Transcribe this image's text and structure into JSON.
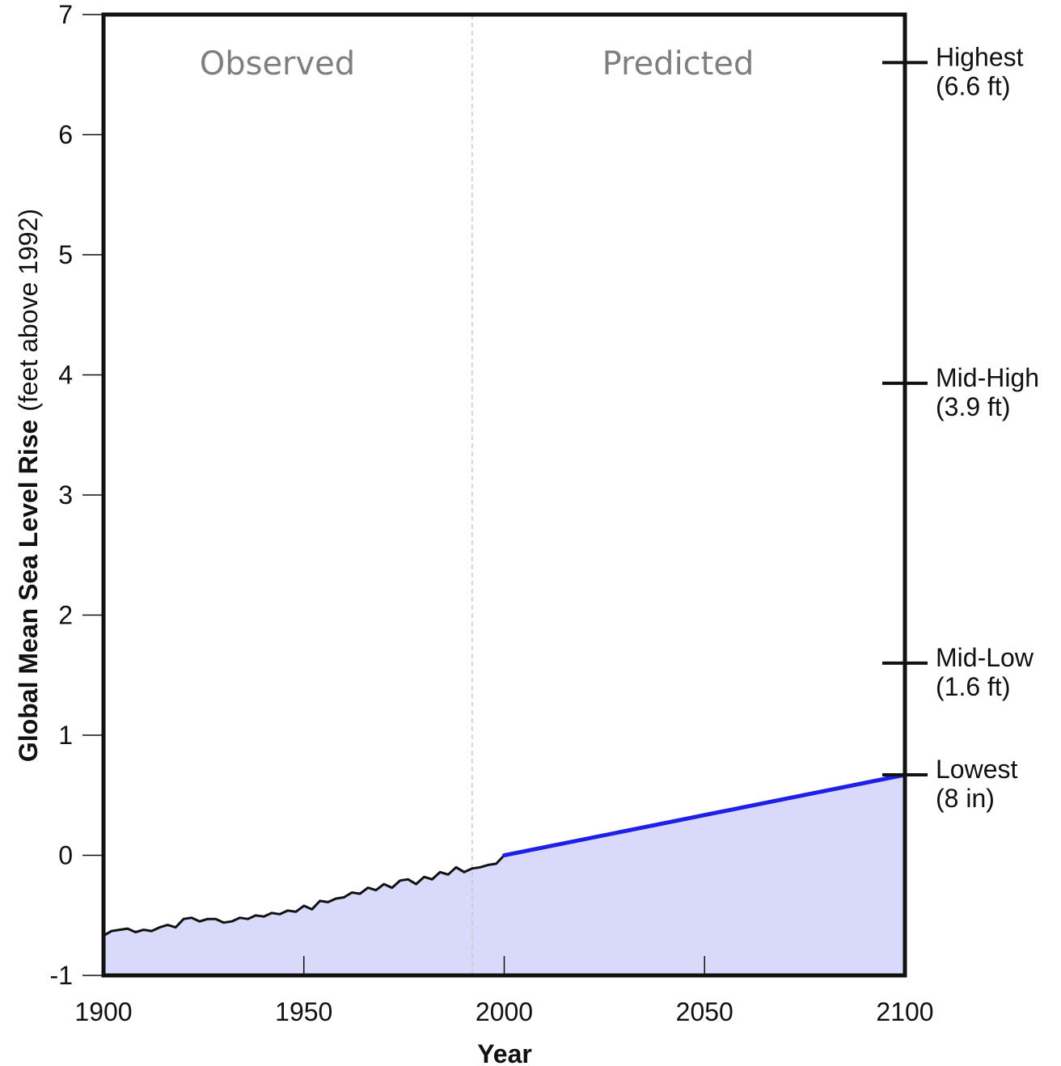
{
  "chart_data": {
    "type": "area",
    "xlabel": "Year",
    "ylabel_bold": "Global Mean Sea Level Rise",
    "ylabel_units": "(feet above 1992)",
    "xlim": [
      1900,
      2100
    ],
    "ylim": [
      -1,
      7
    ],
    "x_ticks": [
      "1900",
      "1950",
      "2000",
      "2050",
      "2100"
    ],
    "x_tick_values": [
      1900,
      1950,
      2000,
      2050,
      2100
    ],
    "y_ticks": [
      "-1",
      "0",
      "1",
      "2",
      "3",
      "4",
      "5",
      "6",
      "7"
    ],
    "y_tick_values": [
      -1,
      0,
      1,
      2,
      3,
      4,
      5,
      6,
      7
    ],
    "grid": false,
    "divider_year": 1992,
    "regions": [
      {
        "label": "Observed",
        "center_year": 1945
      },
      {
        "label": "Predicted",
        "center_year": 2045
      }
    ],
    "observed": {
      "color": "#111111",
      "x": [
        1900,
        1902,
        1904,
        1906,
        1908,
        1910,
        1912,
        1914,
        1916,
        1918,
        1920,
        1922,
        1924,
        1926,
        1928,
        1930,
        1932,
        1934,
        1936,
        1938,
        1940,
        1942,
        1944,
        1946,
        1948,
        1950,
        1952,
        1954,
        1956,
        1958,
        1960,
        1962,
        1964,
        1966,
        1968,
        1970,
        1972,
        1974,
        1976,
        1978,
        1980,
        1982,
        1984,
        1986,
        1988,
        1990,
        1992,
        1994,
        1996,
        1998,
        2000
      ],
      "values": [
        -0.67,
        -0.63,
        -0.62,
        -0.61,
        -0.64,
        -0.62,
        -0.63,
        -0.6,
        -0.58,
        -0.6,
        -0.53,
        -0.52,
        -0.55,
        -0.53,
        -0.53,
        -0.56,
        -0.55,
        -0.52,
        -0.53,
        -0.5,
        -0.51,
        -0.48,
        -0.49,
        -0.46,
        -0.47,
        -0.42,
        -0.45,
        -0.38,
        -0.39,
        -0.36,
        -0.35,
        -0.31,
        -0.32,
        -0.27,
        -0.29,
        -0.24,
        -0.27,
        -0.21,
        -0.2,
        -0.24,
        -0.18,
        -0.2,
        -0.14,
        -0.16,
        -0.1,
        -0.14,
        -0.11,
        -0.1,
        -0.08,
        -0.07,
        0.0
      ]
    },
    "predicted": {
      "color": "#1f1fe6",
      "x": [
        2000,
        2100
      ],
      "values": [
        0.0,
        0.67
      ]
    },
    "fill_color": "#d9d9fb",
    "scenarios": [
      {
        "name": "Highest",
        "detail": "(6.6 ft)",
        "value": 6.6
      },
      {
        "name": "Mid-High",
        "detail": "(3.9 ft)",
        "value": 3.93
      },
      {
        "name": "Mid-Low",
        "detail": "(1.6 ft)",
        "value": 1.6
      },
      {
        "name": "Lowest",
        "detail": "(8 in)",
        "value": 0.67
      }
    ]
  }
}
